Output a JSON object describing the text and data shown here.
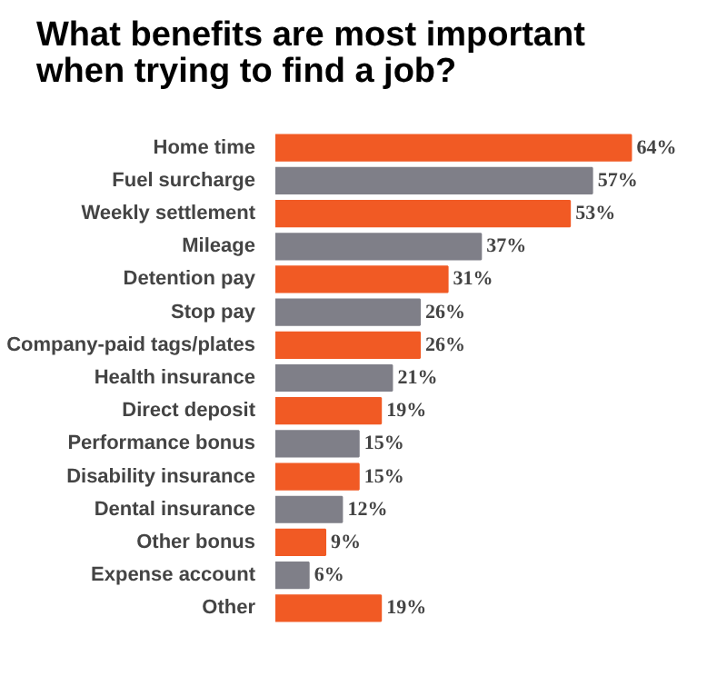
{
  "chart_data": {
    "type": "bar",
    "orientation": "horizontal",
    "title": "What benefits are most important\nwhen trying to find a job?",
    "categories": [
      "Home time",
      "Fuel surcharge",
      "Weekly settlement",
      "Mileage",
      "Detention pay",
      "Stop pay",
      "Company-paid tags/plates",
      "Health insurance",
      "Direct deposit",
      "Performance bonus",
      "Disability insurance",
      "Dental insurance",
      "Other bonus",
      "Expense account",
      "Other"
    ],
    "values": [
      64,
      57,
      53,
      37,
      31,
      26,
      26,
      21,
      19,
      15,
      15,
      12,
      9,
      6,
      19
    ],
    "colors": [
      "#f15a24",
      "#7f7f88",
      "#f15a24",
      "#7f7f88",
      "#f15a24",
      "#7f7f88",
      "#f15a24",
      "#7f7f88",
      "#f15a24",
      "#7f7f88",
      "#f15a24",
      "#7f7f88",
      "#f15a24",
      "#7f7f88",
      "#f15a24"
    ],
    "value_labels": [
      "64%",
      "57%",
      "53%",
      "37%",
      "31%",
      "26%",
      "26%",
      "21%",
      "19%",
      "15%",
      "15%",
      "12%",
      "9%",
      "6%",
      "19%"
    ],
    "tick_labels": "y",
    "grid": false
  }
}
